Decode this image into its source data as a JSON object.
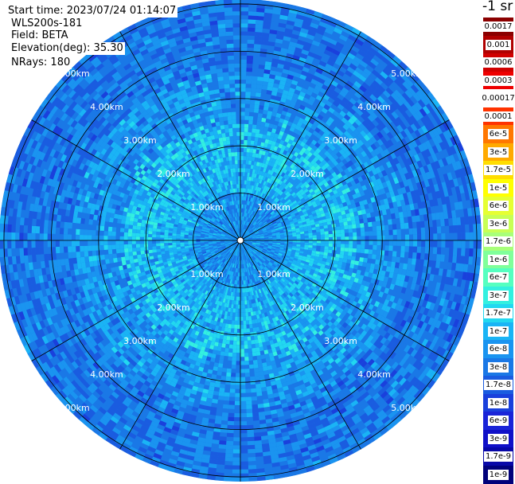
{
  "header": {
    "start_time": "Start time: 2023/07/24 01:14:07",
    "instrument": "WLS200s-181",
    "field": "Field: BETA",
    "elevation": "Elevation(deg): 35.30",
    "nrays": "NRays: 180"
  },
  "chart_data": {
    "type": "heatmap",
    "projection": "polar (PPI)",
    "range_rings_km": [
      1,
      2,
      3,
      4,
      5
    ],
    "ring_labels": [
      "1.00km",
      "2.00km",
      "3.00km",
      "4.00km",
      "5.00km"
    ],
    "spokes_every_deg": 30,
    "max_range_km": 5.1,
    "background_color": "#1a7ae6",
    "colorbar": {
      "unit_label": "-1 sr",
      "ticks": [
        "0.0017",
        "0.001",
        "0.0006",
        "0.0003",
        "0.00017",
        "0.0001",
        "6e-5",
        "3e-5",
        "1.7e-5",
        "1e-5",
        "6e-6",
        "3e-6",
        "1.7e-6",
        "1e-6",
        "6e-7",
        "3e-7",
        "1.7e-7",
        "1e-7",
        "6e-8",
        "3e-8",
        "1.7e-8",
        "1e-8",
        "6e-9",
        "3e-9",
        "1.7e-9",
        "1e-9"
      ],
      "colors": [
        "#8b0000",
        "#b00000",
        "#d00000",
        "#ee0000",
        "#ffffff",
        "#ff3300",
        "#ff7700",
        "#ffaa00",
        "#ffdd00",
        "#ffff00",
        "#e6ff33",
        "#c8ff55",
        "#a8ff7a",
        "#80ff9a",
        "#55ffc0",
        "#33f0e0",
        "#22d8f0",
        "#1ab4f5",
        "#1a94f0",
        "#1a78e6",
        "#1a5ce0",
        "#1a40dc",
        "#1a24d8",
        "#1010c8",
        "#0808a8",
        "#00007a"
      ]
    }
  }
}
